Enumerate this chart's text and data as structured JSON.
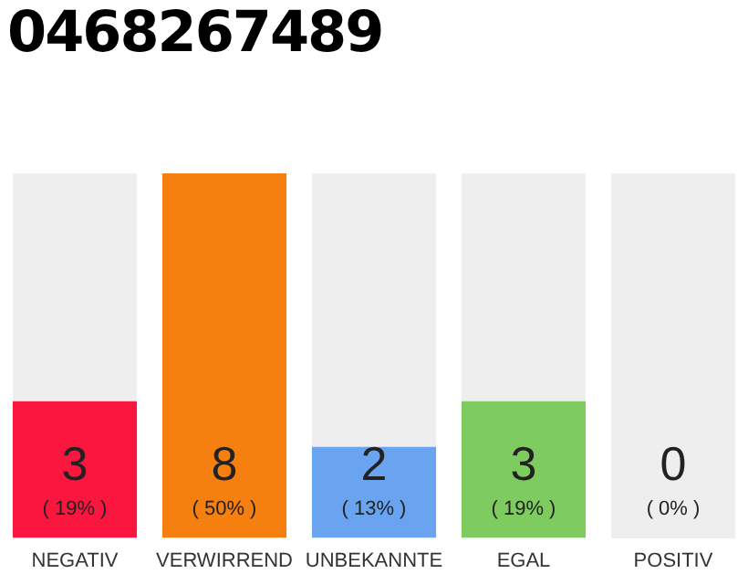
{
  "chart_data": {
    "type": "bar",
    "title": "0468267489",
    "categories": [
      "NEGATIV",
      "VERWIRREND",
      "UNBEKANNTE",
      "EGAL",
      "POSITIV"
    ],
    "values": [
      3,
      8,
      2,
      3,
      0
    ],
    "colors": [
      "#fb1640",
      "#f57f0f",
      "#6aa3f0",
      "#7ecb5f",
      "#d0d0d0"
    ],
    "data_labels": true,
    "annotations": [
      "( 19% )",
      "( 50% )",
      "( 13% )",
      "( 19% )",
      "( 0% )"
    ],
    "grid": false,
    "legend": false
  }
}
